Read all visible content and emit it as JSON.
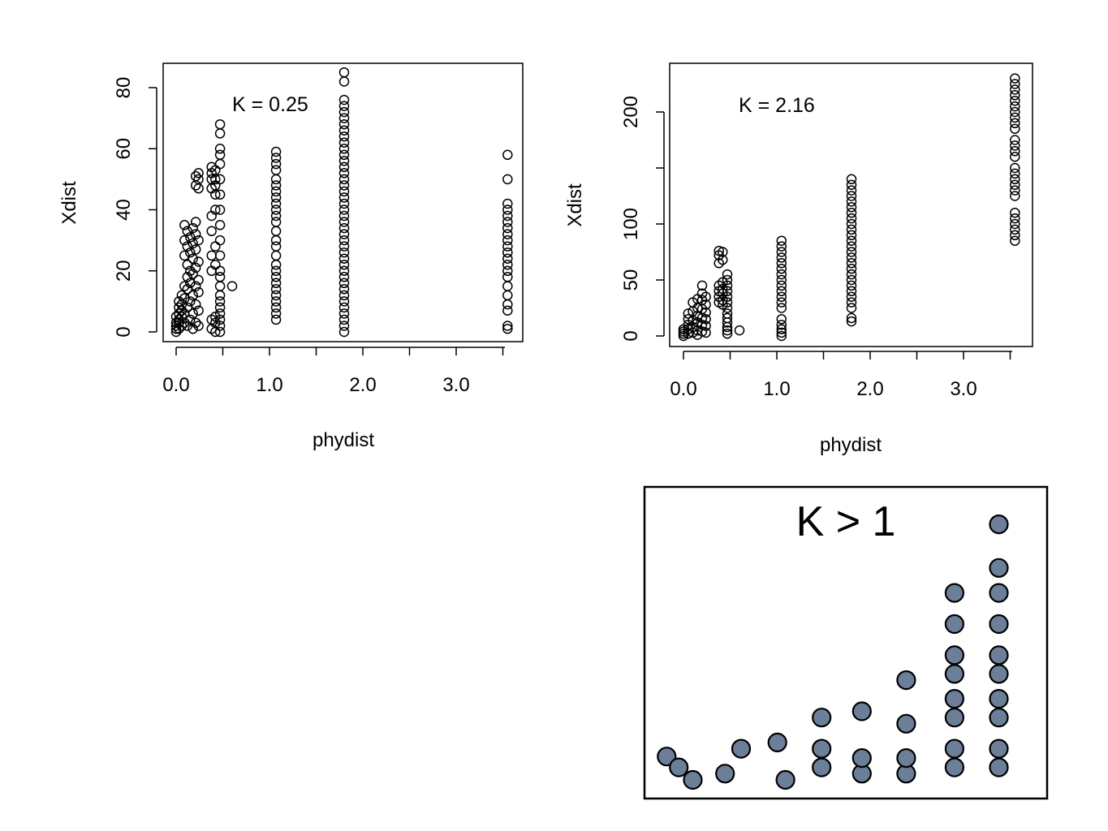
{
  "chart_data": [
    {
      "type": "scatter",
      "xlabel": "phydist",
      "ylabel": "Xdist",
      "annotation": "K = 0.25",
      "xlim": [
        0,
        3.5
      ],
      "ylim": [
        0,
        85
      ],
      "xticks": [
        0.0,
        0.5,
        1.0,
        1.5,
        2.0,
        2.5,
        3.0,
        3.5
      ],
      "xtick_labels": [
        "0.0",
        "",
        "1.0",
        "",
        "2.0",
        "",
        "3.0",
        ""
      ],
      "yticks": [
        0,
        20,
        40,
        60,
        80
      ],
      "ytick_labels": [
        "0",
        "20",
        "40",
        "60",
        "80"
      ],
      "grid": false,
      "marker": "open-circle",
      "columns": [
        {
          "x": 0.0,
          "y": [
            0,
            1,
            2,
            3,
            5
          ]
        },
        {
          "x": 0.03,
          "y": [
            1,
            3,
            4,
            6,
            8,
            10
          ]
        },
        {
          "x": 0.06,
          "y": [
            2,
            5,
            7,
            9,
            12
          ]
        },
        {
          "x": 0.09,
          "y": [
            3,
            6,
            11,
            15,
            25,
            30,
            35
          ]
        },
        {
          "x": 0.12,
          "y": [
            2,
            8,
            14,
            18,
            22,
            28,
            33
          ]
        },
        {
          "x": 0.15,
          "y": [
            4,
            10,
            16,
            20,
            26,
            31
          ]
        },
        {
          "x": 0.18,
          "y": [
            1,
            6,
            12,
            19,
            24,
            29,
            34
          ]
        },
        {
          "x": 0.21,
          "y": [
            3,
            9,
            15,
            21,
            27,
            32,
            36,
            48,
            51
          ]
        },
        {
          "x": 0.24,
          "y": [
            2,
            7,
            13,
            17,
            23,
            30,
            47,
            50,
            52
          ]
        },
        {
          "x": 0.38,
          "y": [
            1,
            4,
            20,
            25,
            33,
            38,
            47,
            50,
            52,
            54
          ]
        },
        {
          "x": 0.42,
          "y": [
            0,
            3,
            5,
            22,
            28,
            40,
            45,
            48,
            50,
            53
          ]
        },
        {
          "x": 0.47,
          "y": [
            0,
            2,
            4,
            6,
            8,
            10,
            12,
            15,
            18,
            20,
            25,
            30,
            35,
            40,
            45,
            50,
            55,
            58,
            60,
            65,
            68
          ]
        },
        {
          "x": 0.6,
          "y": [
            15
          ]
        },
        {
          "x": 1.07,
          "y": [
            4,
            6,
            8,
            10,
            12,
            14,
            16,
            18,
            20,
            22,
            25,
            28,
            30,
            33,
            36,
            38,
            40,
            42,
            44,
            46,
            48,
            50,
            53,
            55,
            57,
            59
          ]
        },
        {
          "x": 1.8,
          "y": [
            0,
            2,
            4,
            6,
            8,
            10,
            12,
            14,
            16,
            18,
            20,
            22,
            24,
            26,
            28,
            30,
            32,
            34,
            36,
            38,
            40,
            42,
            44,
            46,
            48,
            50,
            52,
            54,
            56,
            58,
            60,
            62,
            64,
            66,
            68,
            70,
            72,
            74,
            76,
            82,
            85
          ]
        },
        {
          "x": 3.55,
          "y": [
            1,
            2,
            7,
            9,
            12,
            15,
            18,
            20,
            22,
            24,
            26,
            28,
            30,
            32,
            34,
            36,
            38,
            40,
            42,
            50,
            58
          ]
        }
      ]
    },
    {
      "type": "scatter",
      "xlabel": "phydist",
      "ylabel": "Xdist",
      "annotation": "K = 2.16",
      "xlim": [
        0,
        3.5
      ],
      "ylim": [
        0,
        240
      ],
      "xticks": [
        0.0,
        0.5,
        1.0,
        1.5,
        2.0,
        2.5,
        3.0,
        3.5
      ],
      "xtick_labels": [
        "0.0",
        "",
        "1.0",
        "",
        "2.0",
        "",
        "3.0",
        ""
      ],
      "yticks": [
        0,
        50,
        100,
        150,
        200
      ],
      "ytick_labels": [
        "0",
        "50",
        "100",
        "",
        "200"
      ],
      "grid": false,
      "marker": "open-circle",
      "columns": [
        {
          "x": 0.0,
          "y": [
            0,
            2,
            4,
            6
          ]
        },
        {
          "x": 0.05,
          "y": [
            2,
            6,
            10,
            15,
            20
          ]
        },
        {
          "x": 0.1,
          "y": [
            3,
            8,
            14,
            22,
            30
          ]
        },
        {
          "x": 0.15,
          "y": [
            1,
            5,
            12,
            18,
            25,
            33
          ]
        },
        {
          "x": 0.2,
          "y": [
            4,
            10,
            16,
            24,
            32,
            38,
            45
          ]
        },
        {
          "x": 0.24,
          "y": [
            3,
            9,
            15,
            21,
            28,
            35
          ]
        },
        {
          "x": 0.38,
          "y": [
            30,
            35,
            40,
            45,
            65,
            72,
            76
          ]
        },
        {
          "x": 0.42,
          "y": [
            28,
            32,
            38,
            42,
            48,
            68,
            75
          ]
        },
        {
          "x": 0.47,
          "y": [
            2,
            5,
            8,
            12,
            16,
            20,
            25,
            30,
            35,
            40,
            45,
            50,
            55
          ]
        },
        {
          "x": 0.6,
          "y": [
            5
          ]
        },
        {
          "x": 1.05,
          "y": [
            0,
            3,
            6,
            10,
            15,
            25,
            30,
            35,
            40,
            45,
            50,
            55,
            60,
            65,
            70,
            75,
            80,
            85
          ]
        },
        {
          "x": 1.8,
          "y": [
            13,
            16,
            25,
            30,
            35,
            40,
            45,
            50,
            55,
            60,
            65,
            70,
            75,
            80,
            85,
            90,
            95,
            100,
            105,
            110,
            115,
            120,
            125,
            130,
            135,
            140
          ]
        },
        {
          "x": 3.55,
          "y": [
            85,
            90,
            95,
            100,
            105,
            110,
            125,
            130,
            135,
            140,
            145,
            150,
            160,
            165,
            170,
            175,
            185,
            190,
            195,
            200,
            205,
            210,
            215,
            220,
            225,
            230
          ]
        }
      ]
    },
    {
      "type": "scatter",
      "annotation": "K > 1",
      "marker": "filled-circle",
      "marker_color": "#6b7f98",
      "xlim": [
        0,
        10
      ],
      "ylim": [
        0,
        10
      ],
      "points": [
        [
          0.55,
          1.35
        ],
        [
          0.85,
          1.0
        ],
        [
          1.2,
          0.6
        ],
        [
          2.0,
          0.8
        ],
        [
          2.4,
          1.6
        ],
        [
          3.3,
          1.8
        ],
        [
          3.5,
          0.6
        ],
        [
          4.4,
          1.0
        ],
        [
          4.4,
          1.6
        ],
        [
          4.4,
          2.6
        ],
        [
          5.4,
          0.8
        ],
        [
          5.4,
          1.3
        ],
        [
          5.4,
          2.8
        ],
        [
          6.5,
          0.8
        ],
        [
          6.5,
          1.3
        ],
        [
          6.5,
          2.4
        ],
        [
          6.5,
          3.8
        ],
        [
          7.7,
          1.0
        ],
        [
          7.7,
          1.6
        ],
        [
          7.7,
          2.6
        ],
        [
          7.7,
          3.2
        ],
        [
          7.7,
          4.0
        ],
        [
          7.7,
          4.6
        ],
        [
          7.7,
          5.6
        ],
        [
          7.7,
          6.6
        ],
        [
          8.8,
          1.0
        ],
        [
          8.8,
          1.6
        ],
        [
          8.8,
          2.6
        ],
        [
          8.8,
          3.2
        ],
        [
          8.8,
          4.0
        ],
        [
          8.8,
          4.6
        ],
        [
          8.8,
          5.6
        ],
        [
          8.8,
          6.6
        ],
        [
          8.8,
          7.4
        ],
        [
          8.8,
          8.8
        ]
      ]
    }
  ]
}
